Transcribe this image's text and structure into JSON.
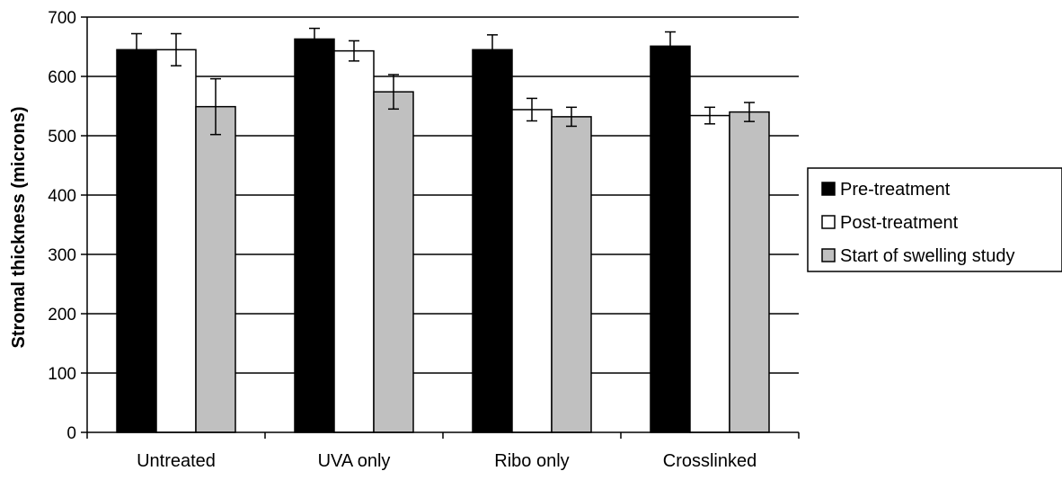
{
  "chart_data": {
    "type": "bar",
    "title": "",
    "xlabel": "",
    "ylabel": "Stromal thickness (microns)",
    "ylim": [
      0,
      700
    ],
    "yticks": [
      0,
      100,
      200,
      300,
      400,
      500,
      600,
      700
    ],
    "grid": true,
    "legend_position": "right",
    "categories": [
      "Untreated",
      "UVA only",
      "Ribo only",
      "Crosslinked"
    ],
    "series": [
      {
        "name": "Pre-treatment",
        "color": "#000000",
        "values": [
          645,
          663,
          645,
          651
        ],
        "errors": [
          27,
          18,
          25,
          24
        ]
      },
      {
        "name": "Post-treatment",
        "color": "#ffffff",
        "values": [
          645,
          643,
          544,
          534
        ],
        "errors": [
          27,
          17,
          19,
          14
        ]
      },
      {
        "name": "Start of swelling study",
        "color": "#c0c0c0",
        "values": [
          549,
          574,
          532,
          540
        ],
        "errors": [
          47,
          29,
          16,
          16
        ]
      }
    ]
  }
}
